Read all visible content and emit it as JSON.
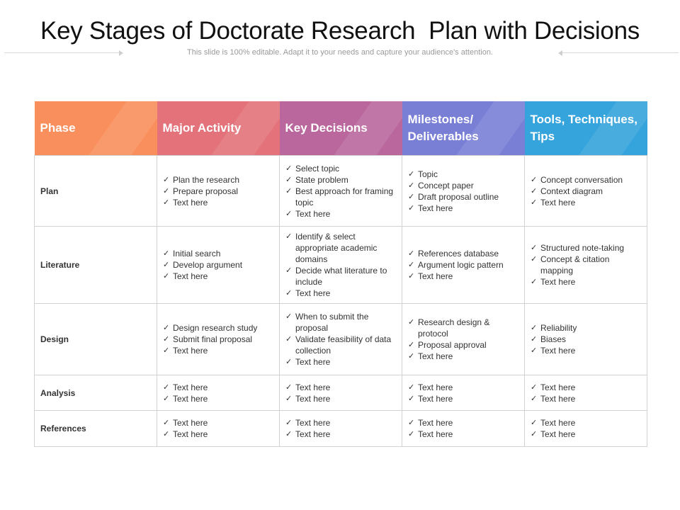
{
  "slide": {
    "title": "Key Stages of Doctorate Research  Plan with Decisions",
    "subtitle": "This slide is 100% editable. Adapt it to your needs and capture your audience's attention."
  },
  "table": {
    "headers": [
      "Phase",
      "Major Activity",
      "Key Decisions",
      "Milestones/ Deliverables",
      "Tools, Techniques, Tips"
    ],
    "header_colors": [
      "#f98f5c",
      "#e3727a",
      "#b9679c",
      "#7a7fd6",
      "#35a3dc"
    ],
    "rows": [
      {
        "phase": "Plan",
        "cells": [
          [
            "Plan the research",
            "Prepare proposal",
            "Text here"
          ],
          [
            "Select topic",
            "State problem",
            "Best approach for framing topic",
            "Text here"
          ],
          [
            "Topic",
            "Concept paper",
            "Draft proposal outline",
            "Text here"
          ],
          [
            "Concept conversation",
            "Context diagram",
            "Text here"
          ]
        ]
      },
      {
        "phase": "Literature",
        "cells": [
          [
            "Initial search",
            "Develop argument",
            "Text here"
          ],
          [
            "Identify & select appropriate academic domains",
            "Decide what literature to include",
            "Text here"
          ],
          [
            "References  database",
            "Argument logic pattern",
            "Text here"
          ],
          [
            "Structured note-taking",
            "Concept & citation mapping",
            "Text here"
          ]
        ]
      },
      {
        "phase": "Design",
        "cells": [
          [
            "Design research study",
            "Submit final proposal",
            "Text here"
          ],
          [
            "When to submit the proposal",
            "Validate feasibility of data collection",
            "Text here"
          ],
          [
            "Research design & protocol",
            "Proposal approval",
            "Text here"
          ],
          [
            "Reliability",
            "Biases",
            "Text here"
          ]
        ]
      },
      {
        "phase": "Analysis",
        "cells": [
          [
            "Text here",
            "Text here"
          ],
          [
            "Text here",
            "Text here"
          ],
          [
            "Text here",
            "Text here"
          ],
          [
            "Text here",
            "Text here"
          ]
        ]
      },
      {
        "phase": "References",
        "cells": [
          [
            "Text here",
            "Text here"
          ],
          [
            "Text here",
            "Text here"
          ],
          [
            "Text here",
            "Text here"
          ],
          [
            "Text here",
            "Text here"
          ]
        ]
      }
    ]
  }
}
